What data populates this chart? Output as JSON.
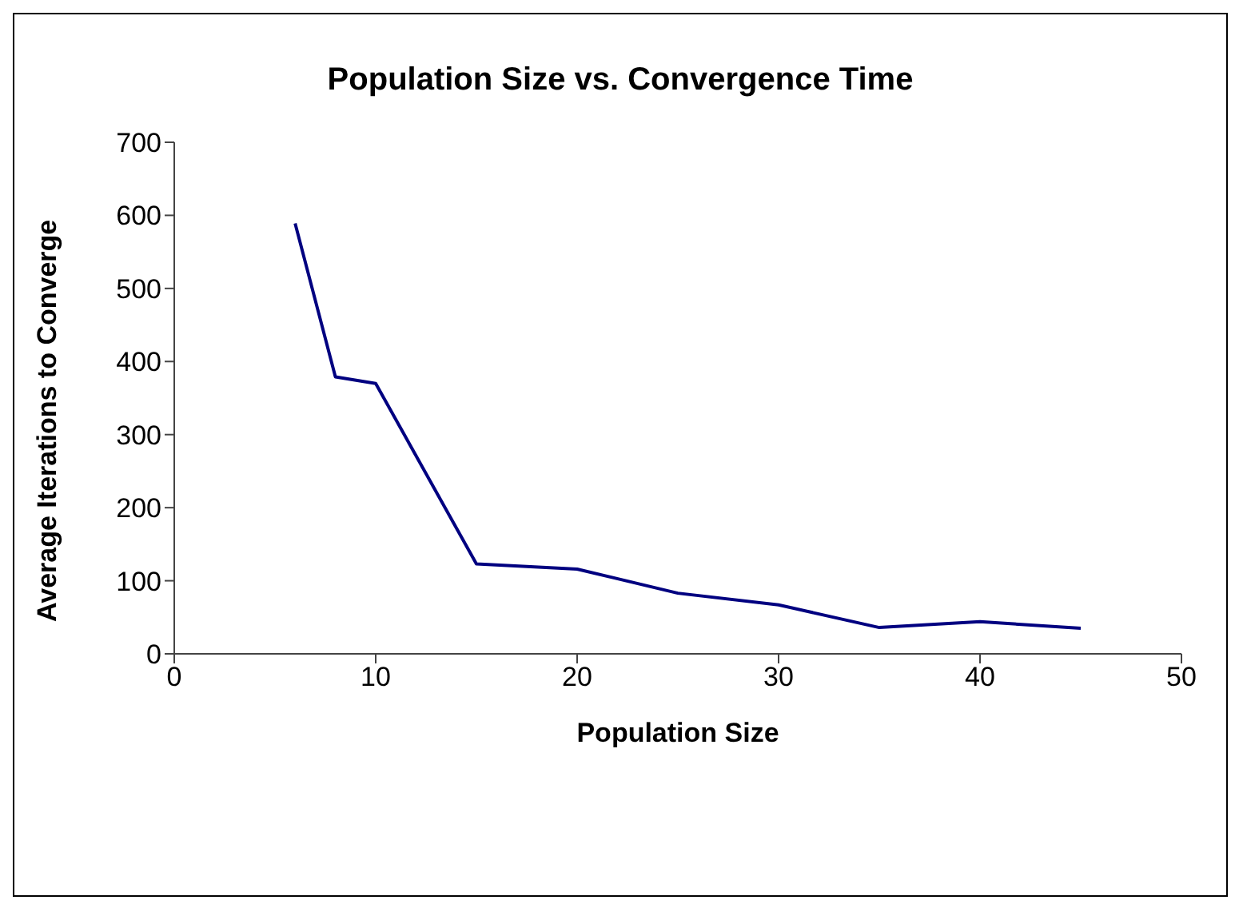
{
  "chart_data": {
    "type": "line",
    "title": "Population Size vs. Convergence Time",
    "xlabel": "Population Size",
    "ylabel": "Average Iterations to Converge",
    "x": [
      6,
      8,
      10,
      15,
      20,
      25,
      30,
      35,
      40,
      45
    ],
    "series": [
      {
        "color": "#000080",
        "values": [
          589,
          379,
          370,
          123,
          116,
          83,
          67,
          36,
          44,
          35
        ]
      }
    ],
    "xlim": [
      0,
      50
    ],
    "xticks": [
      0,
      10,
      20,
      30,
      40,
      50
    ],
    "ylim": [
      0,
      700
    ],
    "yticks": [
      0,
      100,
      200,
      300,
      400,
      500,
      600,
      700
    ],
    "grid": false,
    "legend": false,
    "marker": "none",
    "line_style": "solid"
  }
}
